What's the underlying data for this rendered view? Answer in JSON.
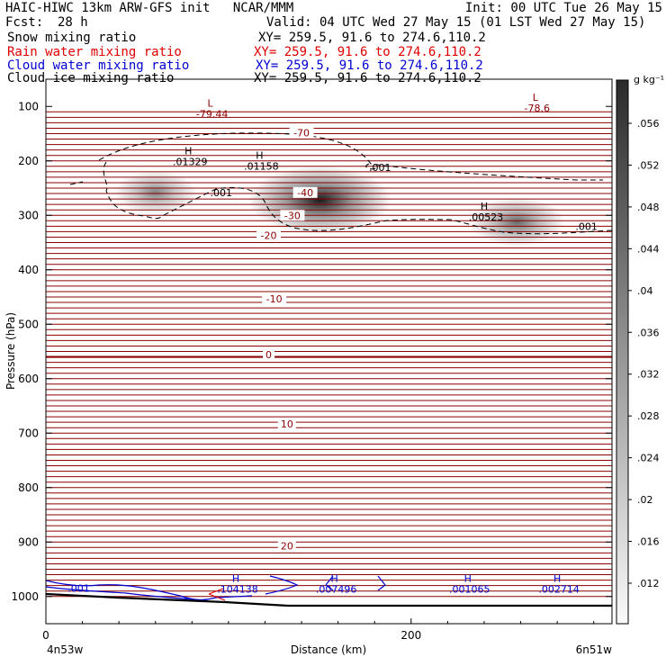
{
  "header": {
    "title": "HAIC-HIWC 13km ARW-GFS init   NCAR/MMM",
    "init": "Init: 00 UTC Tue 26 May 15",
    "fcst_label": "Fcst:",
    "fcst_value": "28 h",
    "valid": "Valid: 04 UTC Wed 27 May 15 (01 LST Wed 27 May 15)",
    "fields": [
      {
        "name": "Snow mixing ratio",
        "xy": "XY= 259.5, 91.6 to 274.6,110.2",
        "color": "#000000"
      },
      {
        "name": "Rain water mixing ratio",
        "xy": "XY= 259.5, 91.6 to 274.6,110.2",
        "color": "#e00000"
      },
      {
        "name": "Cloud water mixing ratio",
        "xy": "XY= 259.5, 91.6 to 274.6,110.2",
        "color": "#0000d0"
      },
      {
        "name": "Cloud ice mixing ratio",
        "xy": "XY= 259.5, 91.6 to 274.6,110.2",
        "color": "#000000"
      }
    ]
  },
  "chart_data": {
    "type": "heatmap",
    "xlabel": "Distance (km)",
    "ylabel": "Pressure (hPa)",
    "x_ticks": [
      0,
      200
    ],
    "x_tick_labels": [
      "0",
      "200"
    ],
    "xlim": [
      0,
      310
    ],
    "y_ticks": [
      100,
      200,
      300,
      400,
      500,
      600,
      700,
      800,
      900,
      1000
    ],
    "y_tick_labels": [
      "100",
      "200",
      "300",
      "400",
      "500",
      "600",
      "700",
      "800",
      "900",
      "1000"
    ],
    "ylim": [
      1050,
      50
    ],
    "x_left_label": "4n53w",
    "x_right_label": "6n51w",
    "colorbar": {
      "unit": "g kg⁻¹",
      "labels": [
        ".056",
        ".052",
        ".048",
        ".044",
        ".04",
        ".036",
        ".032",
        ".028",
        ".024",
        ".02",
        ".016",
        ".012"
      ]
    },
    "temperature_contour_labels": [
      {
        "text": "-70",
        "x": 140,
        "p": 148
      },
      {
        "text": "-40",
        "x": 142,
        "p": 258
      },
      {
        "text": "-30",
        "x": 135,
        "p": 300
      },
      {
        "text": "-20",
        "x": 122,
        "p": 337
      },
      {
        "text": "-10",
        "x": 125,
        "p": 453
      },
      {
        "text": "0",
        "x": 122,
        "p": 556
      },
      {
        "text": "10",
        "x": 132,
        "p": 683
      },
      {
        "text": "20",
        "x": 132,
        "p": 907
      }
    ],
    "extrema_labels": [
      {
        "kind": "L",
        "value": "-79.44",
        "x": 90,
        "p": 100,
        "color": "#8b0000"
      },
      {
        "kind": "L",
        "value": "-78.6",
        "x": 268,
        "p": 90,
        "color": "#8b0000"
      },
      {
        "kind": "H",
        "value": ".01329",
        "x": 78,
        "p": 188,
        "color": "#000000"
      },
      {
        "kind": "H",
        "value": ".01158",
        "x": 117,
        "p": 196,
        "color": "#000000"
      },
      {
        "kind": "H",
        "value": ".00523",
        "x": 240,
        "p": 290,
        "color": "#000000"
      },
      {
        "kind": "H",
        "value": ".104138",
        "x": 104,
        "p": 973,
        "color": "#0000d0"
      },
      {
        "kind": "H",
        "value": ".007496",
        "x": 158,
        "p": 973,
        "color": "#0000d0"
      },
      {
        "kind": "H",
        "value": ".001065",
        "x": 231,
        "p": 973,
        "color": "#0000d0"
      },
      {
        "kind": "H",
        "value": ".002714",
        "x": 280,
        "p": 973,
        "color": "#0000d0"
      }
    ],
    "ice_contour_labels": [
      {
        "text": ".001",
        "x": 96,
        "p": 258
      },
      {
        "text": ".001",
        "x": 183,
        "p": 212
      },
      {
        "text": ".001",
        "x": 296,
        "p": 320
      }
    ],
    "cloud_water_contour_labels": [
      {
        "text": ".001",
        "x": 18,
        "p": 985
      }
    ],
    "snow_maxima": [
      {
        "x": 60,
        "p": 258,
        "value": 0.014
      },
      {
        "x": 150,
        "p": 272,
        "value": 0.042
      },
      {
        "x": 258,
        "p": 312,
        "value": 0.02
      }
    ]
  }
}
